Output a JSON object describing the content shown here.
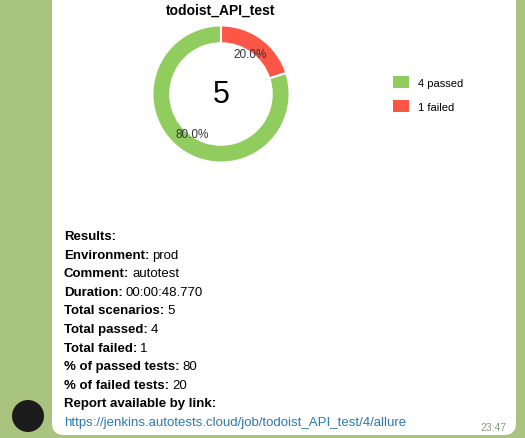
{
  "chart_data": {
    "type": "donut",
    "title": "todoist_API_test",
    "total": 5,
    "categories": [
      "4 passed",
      "1 failed"
    ],
    "values": [
      80.0,
      20.0
    ],
    "value_labels": [
      "80.0%",
      "20.0%"
    ],
    "colors": [
      "#91cc5f",
      "#fc5647"
    ],
    "data_labels": true,
    "legend": "right"
  },
  "message": {
    "heading": "Results:",
    "fields": [
      {
        "label": "Environment:",
        "value": "prod"
      },
      {
        "label": "Comment:",
        "value": "autotest"
      },
      {
        "label": "Duration:",
        "value": "00:00:48.770"
      },
      {
        "label": "Total scenarios:",
        "value": 5
      },
      {
        "label": "Total passed:",
        "value": 4
      },
      {
        "label": "Total failed:",
        "value": 1
      },
      {
        "label": "% of passed tests:",
        "value": 80
      },
      {
        "label": "% of failed tests:",
        "value": 20
      }
    ],
    "link_label": "Report available by link:",
    "link": "https://jenkins.autotests.cloud/job/todoist_API_test/4/allure",
    "time": "23:47"
  }
}
